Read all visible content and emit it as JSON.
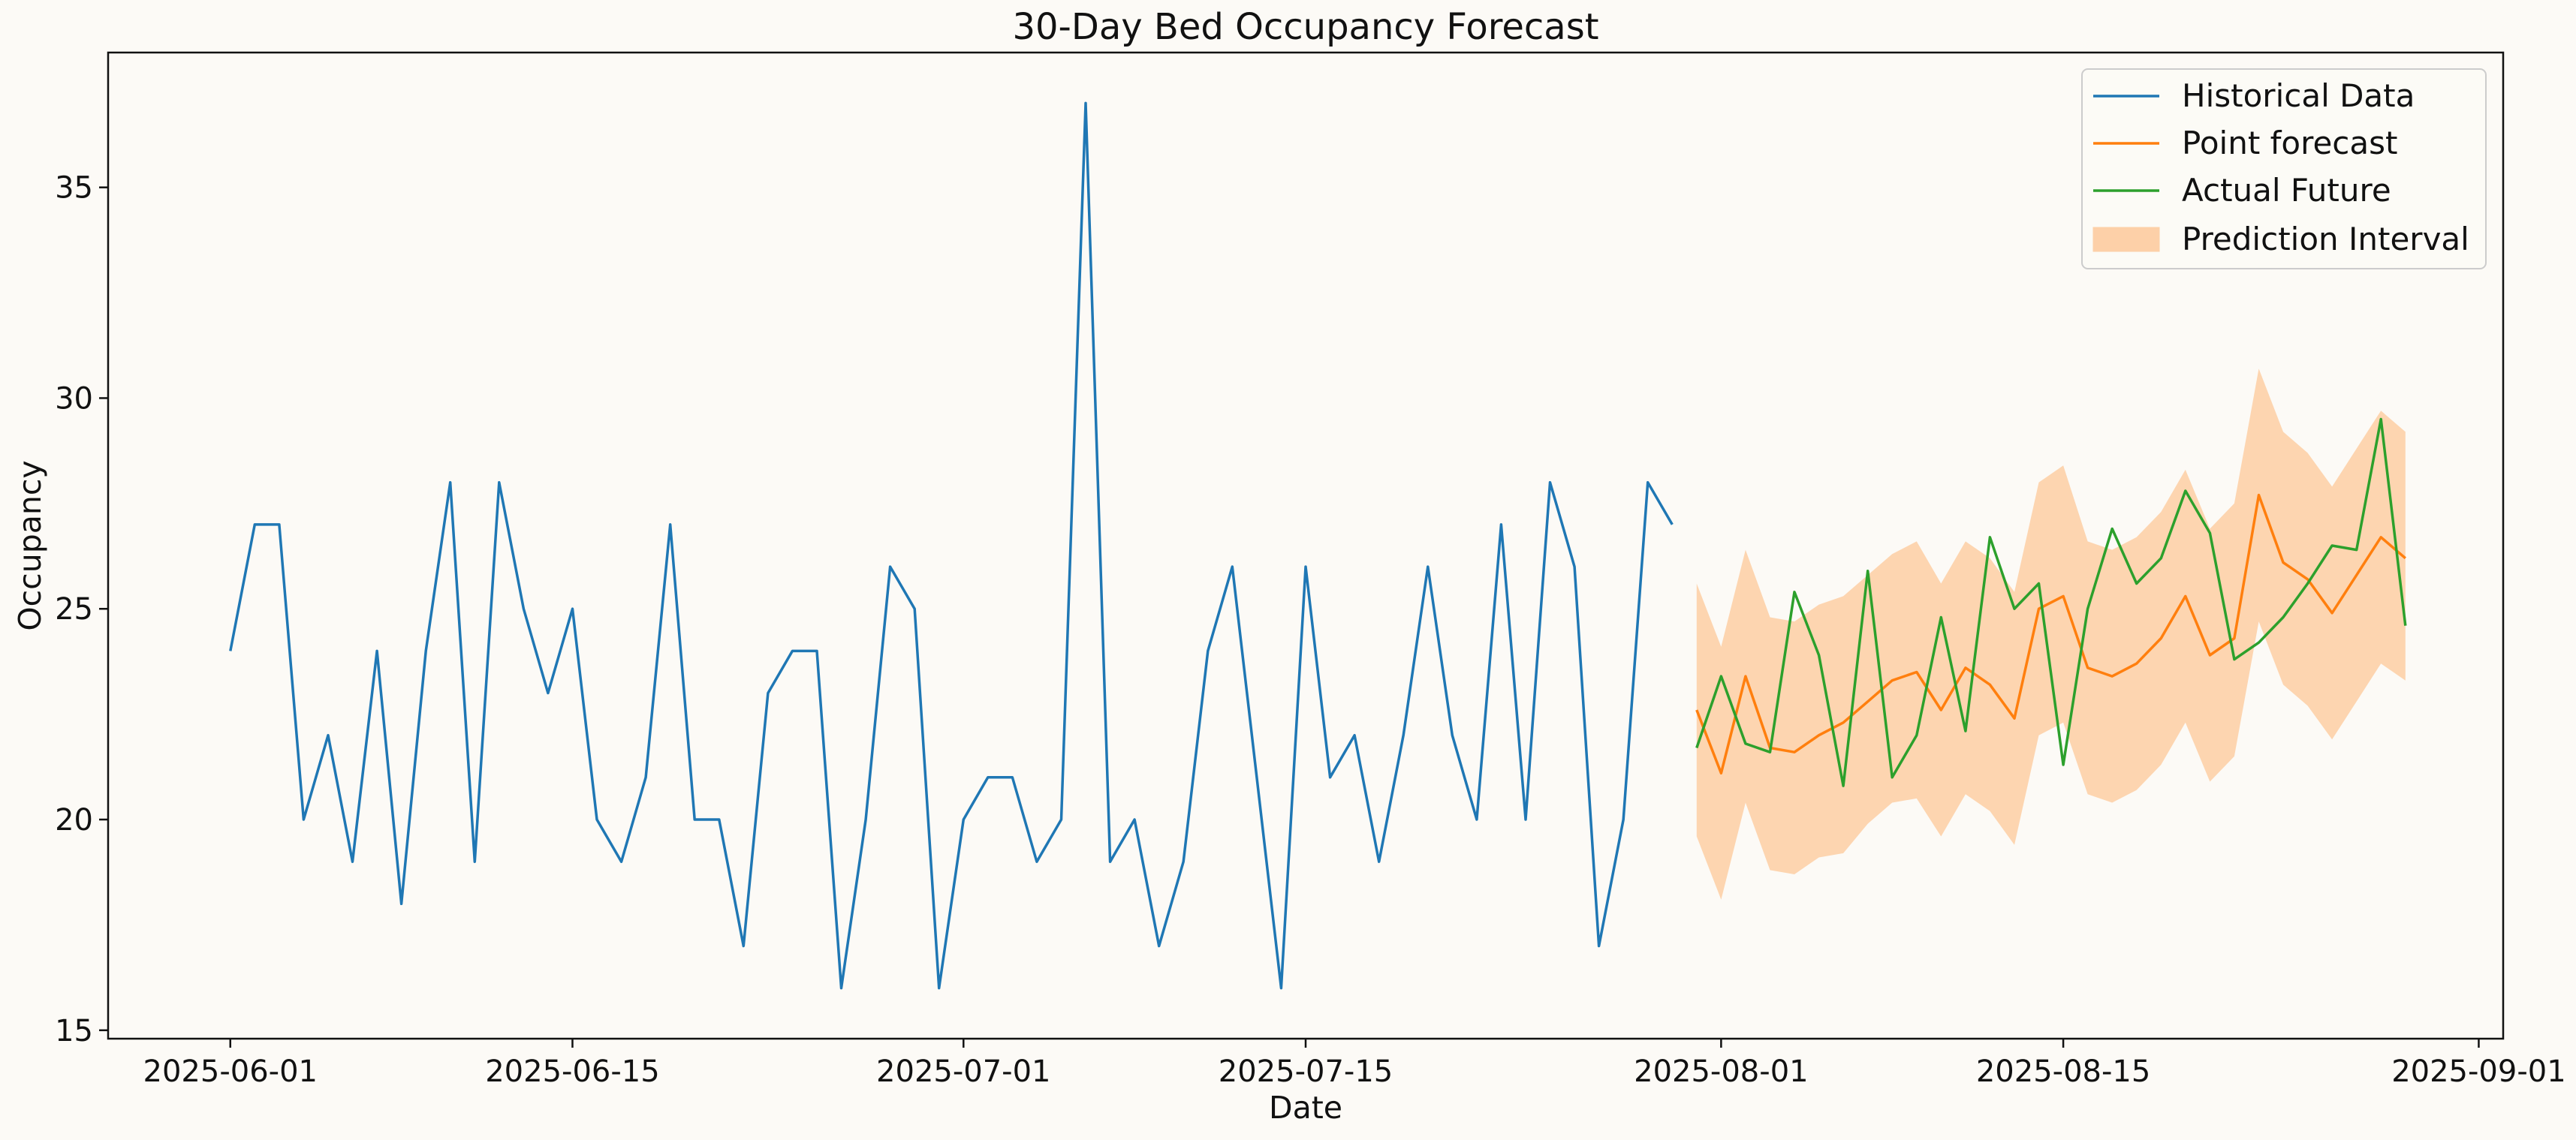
{
  "chart_data": {
    "type": "line",
    "title": "30-Day Bed Occupancy Forecast",
    "xlabel": "Date",
    "ylabel": "Occupancy",
    "xlim": [
      "2025-05-27",
      "2025-09-02"
    ],
    "ylim": [
      14.8,
      38.2
    ],
    "x_ticks": [
      "2025-06-01",
      "2025-06-15",
      "2025-07-01",
      "2025-07-15",
      "2025-08-01",
      "2025-08-15",
      "2025-09-01"
    ],
    "y_ticks": [
      15,
      20,
      25,
      30,
      35
    ],
    "grid": false,
    "legend_position": "top-right",
    "colors": {
      "historical": "#1f77b4",
      "forecast": "#ff7f0e",
      "actual": "#2ca02c",
      "interval": "#fdd0a8",
      "background": "#fcfaf6"
    },
    "legend": [
      "Historical Data",
      "Point forecast",
      "Actual Future",
      "Prediction Interval"
    ],
    "historical": {
      "name": "Historical Data",
      "start": "2025-06-01",
      "values": [
        24,
        27,
        27,
        20,
        22,
        19,
        24,
        18,
        24,
        28,
        19,
        28,
        25,
        23,
        25,
        20,
        19,
        21,
        27,
        20,
        20,
        17,
        23,
        24,
        24,
        16,
        20,
        26,
        25,
        16,
        20,
        21,
        21,
        19,
        20,
        37,
        19,
        20,
        17,
        19,
        24,
        26,
        21,
        16,
        26,
        21,
        22,
        19,
        22,
        26,
        22,
        20,
        27,
        20,
        28,
        26,
        17,
        20,
        28,
        27
      ]
    },
    "forecast_start": "2025-07-31",
    "point_forecast": {
      "name": "Point forecast",
      "values": [
        22.6,
        21.1,
        23.4,
        21.7,
        21.6,
        22.0,
        22.3,
        22.8,
        23.3,
        23.5,
        22.6,
        23.6,
        23.2,
        22.4,
        25.0,
        25.3,
        23.6,
        23.4,
        23.7,
        24.3,
        25.3,
        23.9,
        24.3,
        27.7,
        26.1,
        25.7,
        24.9,
        25.8,
        26.7,
        26.2
      ]
    },
    "actual_future": {
      "name": "Actual Future",
      "values": [
        21.7,
        23.4,
        21.8,
        21.6,
        25.4,
        23.9,
        20.8,
        25.9,
        21.0,
        22.0,
        24.8,
        22.1,
        26.7,
        25.0,
        25.6,
        21.3,
        25.0,
        26.9,
        25.6,
        26.2,
        27.8,
        26.8,
        23.8,
        24.2,
        24.8,
        25.6,
        26.5,
        26.4,
        29.5,
        24.6
      ]
    },
    "prediction_interval": {
      "name": "Prediction Interval",
      "lower": [
        19.6,
        18.1,
        20.4,
        18.8,
        18.7,
        19.1,
        19.2,
        19.9,
        20.4,
        20.5,
        19.6,
        20.6,
        20.2,
        19.4,
        22.0,
        22.3,
        20.6,
        20.4,
        20.7,
        21.3,
        22.3,
        20.9,
        21.5,
        24.7,
        23.2,
        22.7,
        21.9,
        22.8,
        23.7,
        23.3
      ],
      "upper": [
        25.6,
        24.1,
        26.4,
        24.8,
        24.7,
        25.1,
        25.3,
        25.8,
        26.3,
        26.6,
        25.6,
        26.6,
        26.2,
        25.4,
        28.0,
        28.4,
        26.6,
        26.4,
        26.7,
        27.3,
        28.3,
        26.9,
        27.5,
        30.7,
        29.2,
        28.7,
        27.9,
        28.8,
        29.7,
        29.2
      ]
    }
  }
}
